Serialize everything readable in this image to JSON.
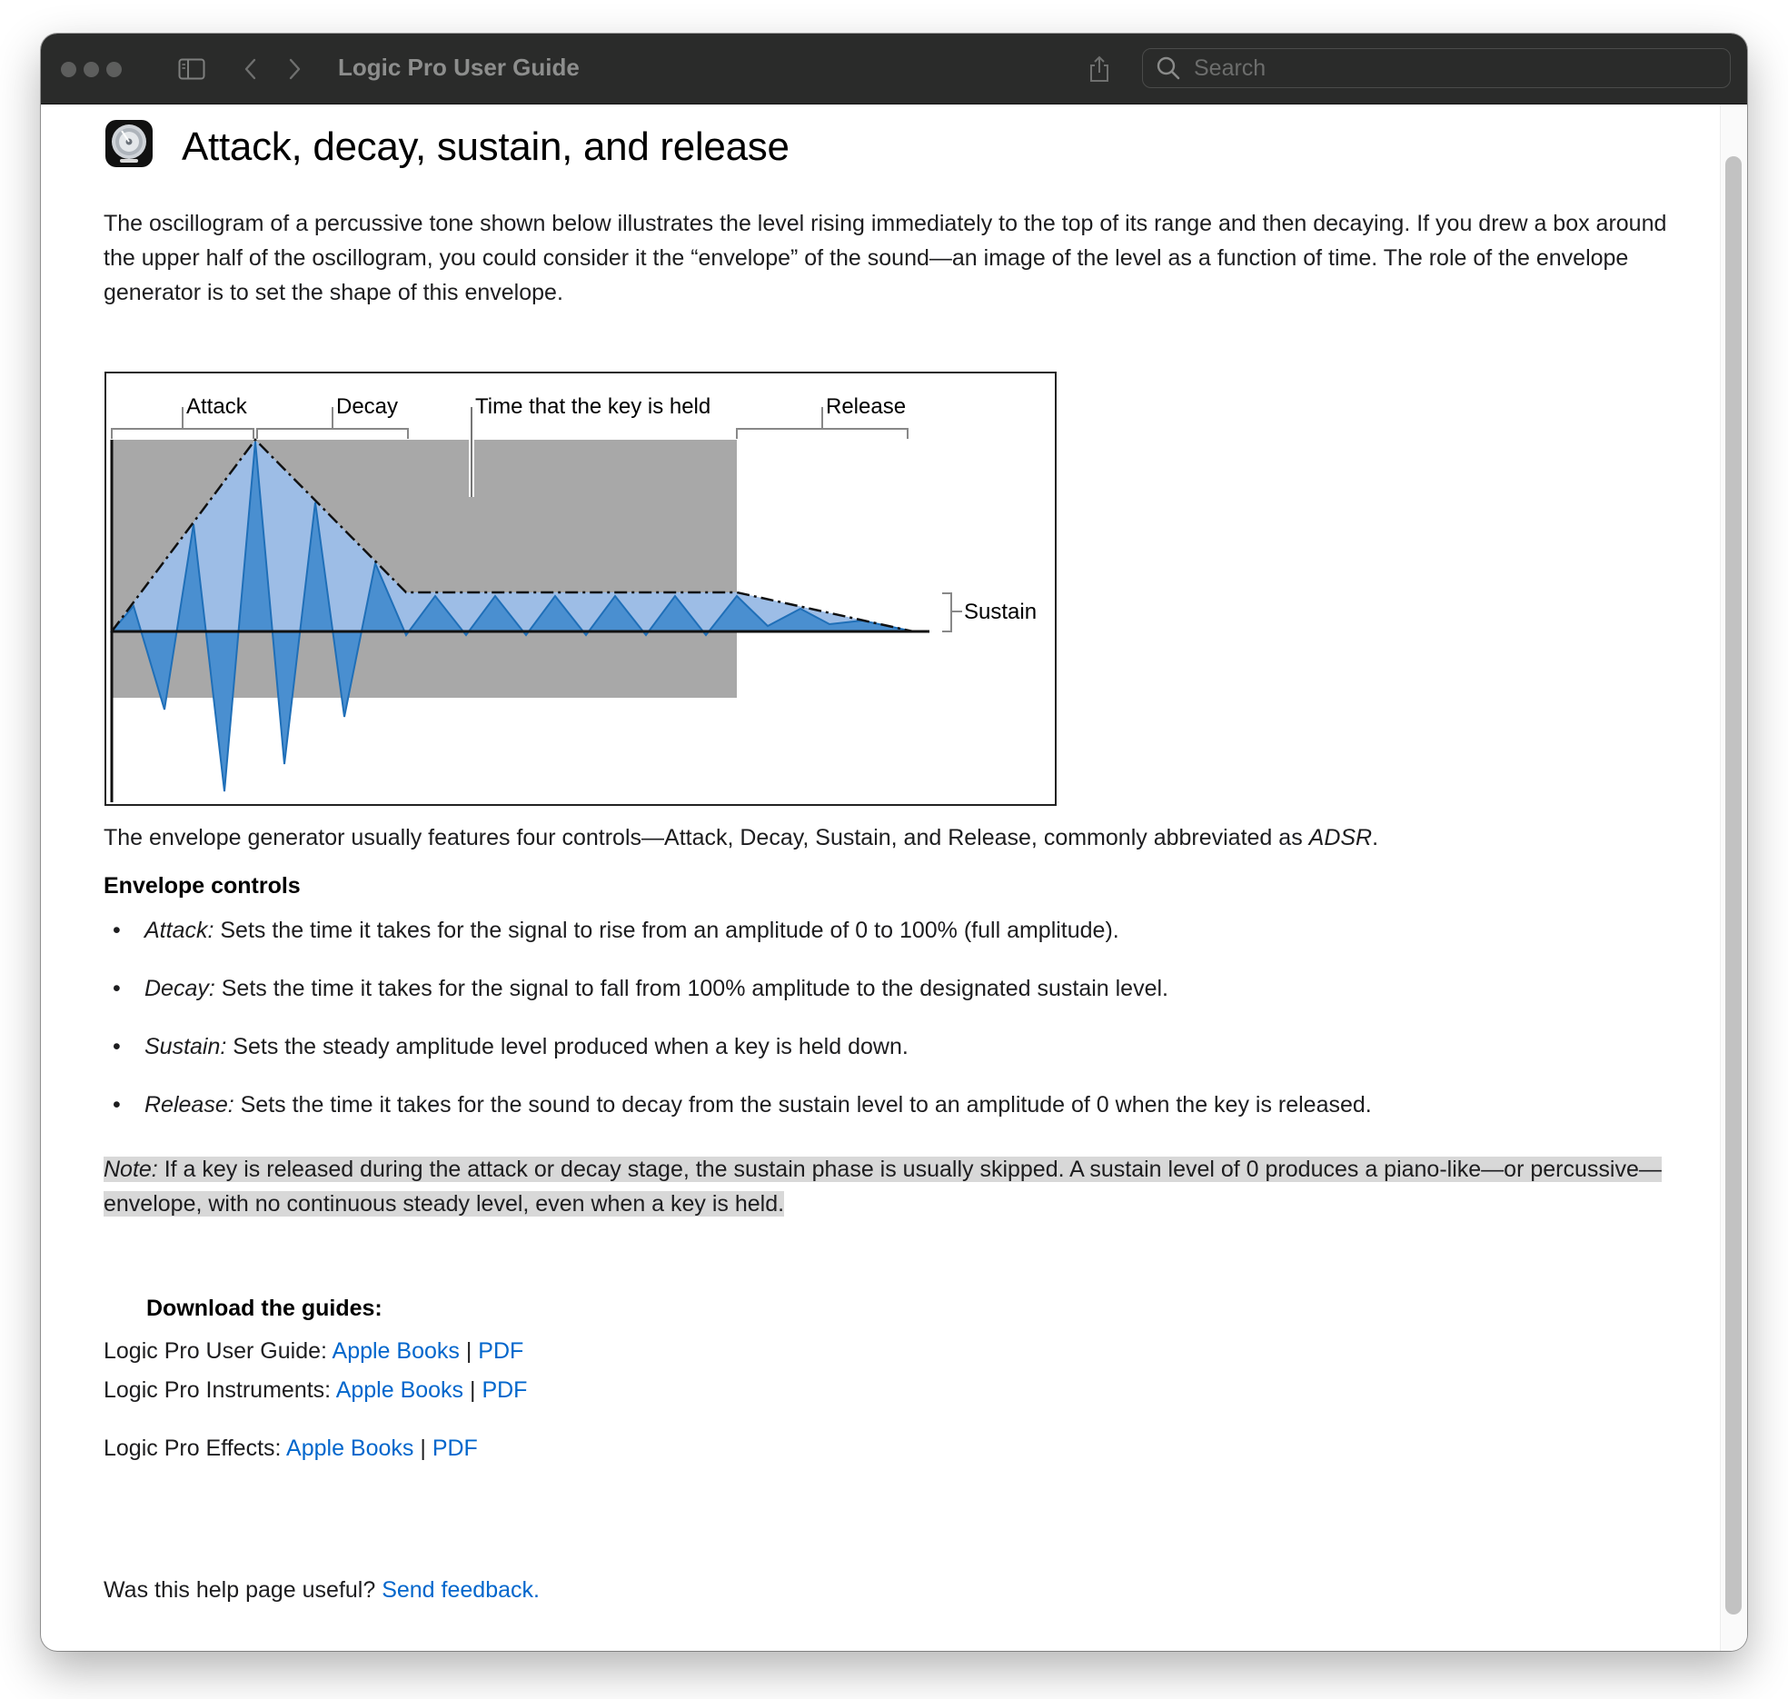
{
  "window": {
    "title": "Logic Pro User Guide",
    "search_placeholder": "Search"
  },
  "page": {
    "title": "Attack, decay, sustain, and release",
    "intro": "The oscillogram of a percussive tone shown below illustrates the level rising immediately to the top of its range and then decaying. If you drew a box around the upper half of the oscillogram, you could consider it the “envelope” of the sound—an image of the level as a function of time. The role of the envelope generator is to set the shape of this envelope.",
    "adsr_sentence_before": "The envelope generator usually features four controls—Attack, Decay, Sustain, and Release, commonly abbreviated as ",
    "adsr_abbrev": "ADSR",
    "adsr_sentence_after": ".",
    "controls_heading": "Envelope controls",
    "controls": [
      {
        "term": "Attack:",
        "text": " Sets the time it takes for the signal to rise from an amplitude of 0 to 100% (full amplitude)."
      },
      {
        "term": "Decay:",
        "text": " Sets the time it takes for the signal to fall from 100% amplitude to the designated sustain level."
      },
      {
        "term": "Sustain:",
        "text": " Sets the steady amplitude level produced when a key is held down."
      },
      {
        "term": "Release:",
        "text": " Sets the time it takes for the sound to decay from the sustain level to an amplitude of 0 when the key is released."
      }
    ],
    "note_label": "Note:",
    "note_text": " If a key is released during the attack or decay stage, the sustain phase is usually skipped. A sustain level of 0 produces a piano-like—or percussive—envelope, with no continuous steady level, even when a key is held."
  },
  "figure": {
    "labels": {
      "attack": "Attack",
      "decay": "Decay",
      "held": "Time that the key is held",
      "release": "Release",
      "sustain": "Sustain"
    },
    "colors": {
      "gate_fill": "#a8a8a8",
      "envelope_fill": "#9dbde6",
      "wave_fill": "#4a8fd0",
      "wave_stroke": "#1f6fb8"
    }
  },
  "downloads": {
    "heading": "Download the guides:",
    "rows": [
      {
        "label": "Logic Pro User Guide: ",
        "books": "Apple Books",
        "sep": " | ",
        "pdf": "PDF"
      },
      {
        "label": "Logic Pro Instruments: ",
        "books": "Apple Books",
        "sep": " | ",
        "pdf": "PDF"
      },
      {
        "label": "Logic Pro Effects: ",
        "books": "Apple Books",
        "sep": " | ",
        "pdf": "PDF"
      }
    ]
  },
  "feedback": {
    "question": "Was this help page useful? ",
    "link": "Send feedback."
  }
}
